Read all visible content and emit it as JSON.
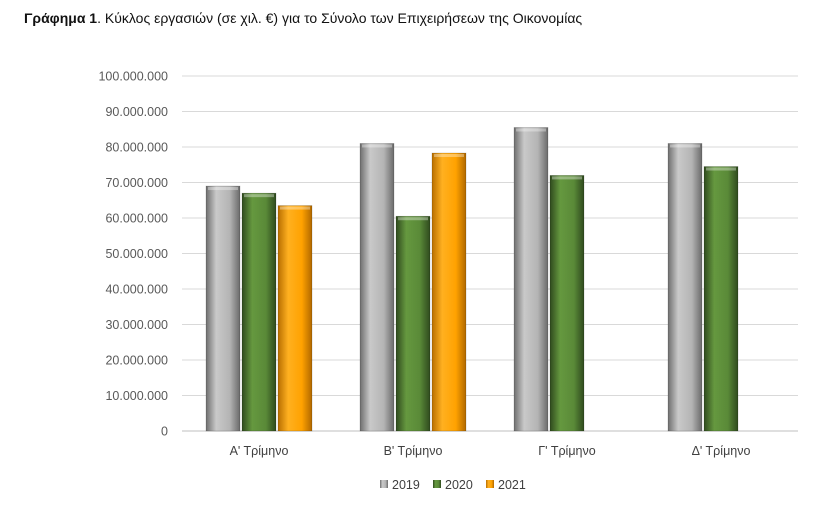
{
  "caption": {
    "prefix": "Γράφημα 1",
    "text": ".  Κύκλος εργασιών (σε χιλ. €) για το Σύνολο των Επιχειρήσεων της Οικονομίας"
  },
  "chart_data": {
    "type": "bar",
    "categories": [
      "Α' Τρίμηνο",
      "Β' Τρίμηνο",
      "Γ' Τρίμηνο",
      "Δ' Τρίμηνο"
    ],
    "series": [
      {
        "name": "2019",
        "color": "#A6A6A6",
        "values": [
          69000000,
          81000000,
          85500000,
          81000000
        ]
      },
      {
        "name": "2020",
        "color": "#548235",
        "values": [
          67000000,
          60500000,
          72000000,
          74500000
        ]
      },
      {
        "name": "2021",
        "color": "#FFA500",
        "values": [
          63500000,
          78300000,
          null,
          null
        ]
      }
    ],
    "ylim": [
      0,
      100000000
    ],
    "yticks": [
      "0",
      "10.000.000",
      "20.000.000",
      "30.000.000",
      "40.000.000",
      "50.000.000",
      "60.000.000",
      "70.000.000",
      "80.000.000",
      "90.000.000",
      "100.000.000"
    ],
    "grid": true,
    "legend_position": "bottom"
  }
}
